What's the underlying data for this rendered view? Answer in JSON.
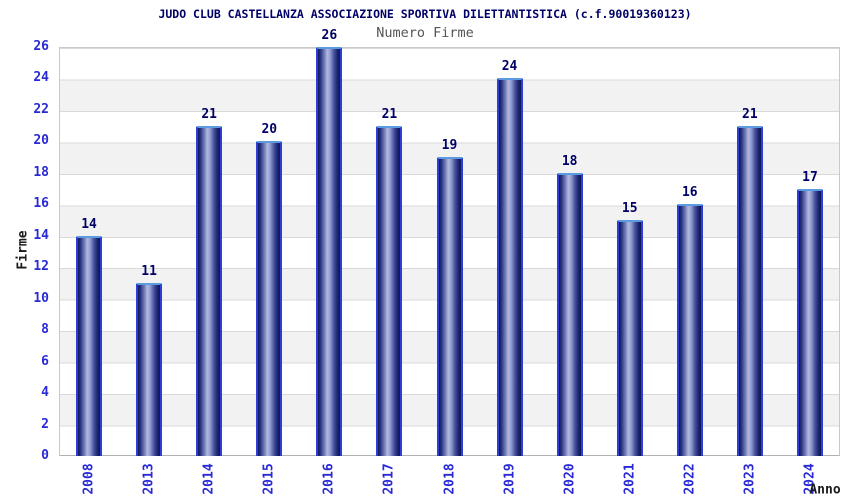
{
  "title": "JUDO CLUB CASTELLANZA ASSOCIAZIONE SPORTIVA DILETTANTISTICA (c.f.90019360123)",
  "subtitle": "Numero Firme",
  "chart_data": {
    "type": "bar",
    "title": "JUDO CLUB CASTELLANZA ASSOCIAZIONE SPORTIVA DILETTANTISTICA (c.f.90019360123)",
    "subtitle": "Numero Firme",
    "categories": [
      "2008",
      "2013",
      "2014",
      "2015",
      "2016",
      "2017",
      "2018",
      "2019",
      "2020",
      "2021",
      "2022",
      "2023",
      "2024"
    ],
    "values": [
      14,
      11,
      21,
      20,
      26,
      21,
      19,
      24,
      18,
      15,
      16,
      21,
      17
    ],
    "xlabel": "Anno",
    "ylabel": "Firme",
    "ylim": [
      0,
      26
    ],
    "yticks": [
      0,
      2,
      4,
      6,
      8,
      10,
      12,
      14,
      16,
      18,
      20,
      22,
      24,
      26
    ],
    "grid": "horizontal gridlines with alternating white/gray stripes",
    "legend": "none",
    "colors": {
      "title_color": "#000066",
      "subtitle_color": "#555555",
      "tick_label_color": "#2929d6",
      "value_label_color": "#000066",
      "bar_border_color": "#2b3fd4",
      "bar_border_top_color": "#5b9be0",
      "bar_dark": "#0f155c",
      "bar_light": "#b0b8e2",
      "stripe_color": "#f2f2f2"
    }
  }
}
